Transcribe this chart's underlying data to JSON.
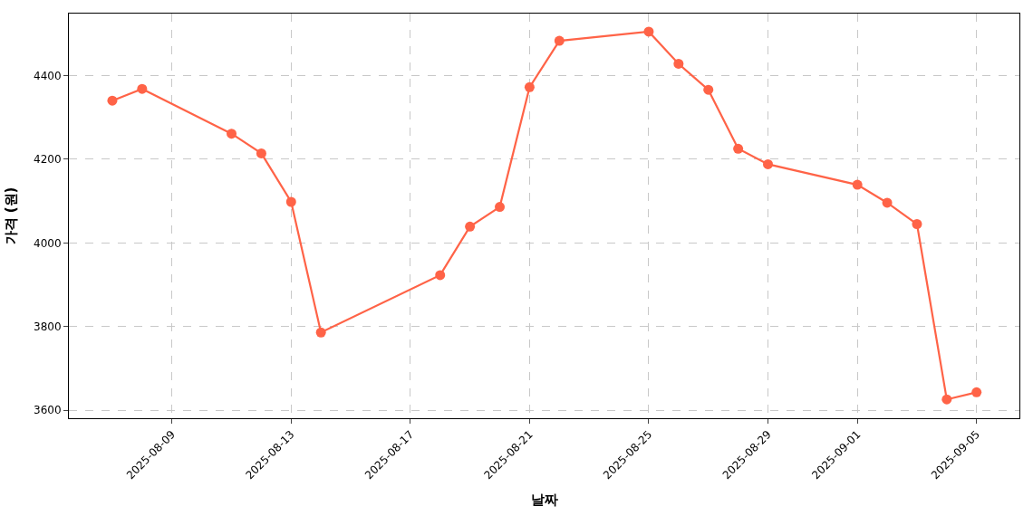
{
  "chart_data": {
    "type": "line",
    "xlabel": "날짜",
    "ylabel": "가격 (원)",
    "x": [
      "2025-08-07",
      "2025-08-08",
      "2025-08-11",
      "2025-08-12",
      "2025-08-13",
      "2025-08-14",
      "2025-08-18",
      "2025-08-19",
      "2025-08-20",
      "2025-08-21",
      "2025-08-22",
      "2025-08-25",
      "2025-08-26",
      "2025-08-27",
      "2025-08-28",
      "2025-08-29",
      "2025-09-01",
      "2025-09-02",
      "2025-09-03",
      "2025-09-04",
      "2025-09-05"
    ],
    "series": [
      {
        "color": "#ff6347",
        "values": [
          4340,
          4368,
          4261,
          4214,
          4098,
          3786,
          3923,
          4039,
          4086,
          4372,
          4483,
          4505,
          4428,
          4366,
          4225,
          4188,
          4139,
          4096,
          4045,
          3626,
          3643
        ]
      }
    ],
    "xlim": [
      "2025-08-05T13:00",
      "2025-09-06T10:30"
    ],
    "xticks": [
      "2025-08-09",
      "2025-08-13",
      "2025-08-17",
      "2025-08-21",
      "2025-08-25",
      "2025-08-29",
      "2025-09-01",
      "2025-09-05"
    ],
    "ylim": [
      3581,
      4548
    ],
    "yticks": [
      3600,
      3800,
      4000,
      4200,
      4400
    ],
    "grid": true,
    "marker": "circle",
    "line_style": "solid"
  }
}
